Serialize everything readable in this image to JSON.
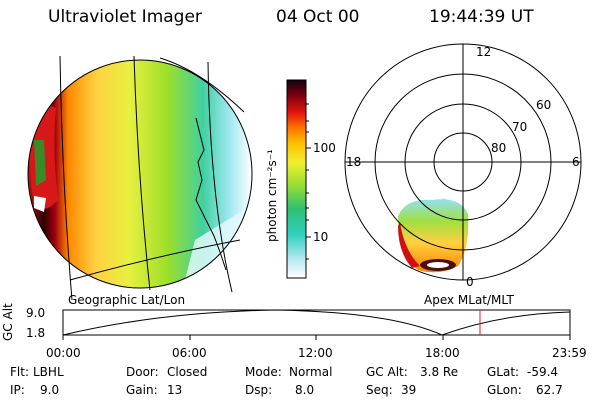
{
  "header": {
    "instrument": "Ultraviolet Imager",
    "date": "04 Oct 00",
    "time": "19:44:39 UT"
  },
  "left_panel": {
    "caption": "Geographic Lat/Lon"
  },
  "right_panel": {
    "caption": "Apex MLat/MLT",
    "mlt_labels": [
      "12",
      "18",
      "6",
      "0"
    ],
    "lat_labels": [
      "60",
      "70",
      "80"
    ]
  },
  "colorbar": {
    "label": "photon cm⁻²s⁻¹",
    "ticks": [
      "100",
      "10"
    ],
    "scale": "log"
  },
  "altitude_plot": {
    "ylabel": "GC Alt",
    "yticks": [
      "9.0",
      "1.8"
    ],
    "xticks": [
      "00:00",
      "06:00",
      "12:00",
      "18:00",
      "23:59"
    ],
    "current_time_marker_hours": 19.74,
    "marker_color": "#e02020"
  },
  "status": {
    "filter_label": "Flt:",
    "filter_value": "LBHL",
    "ip_label": "IP:",
    "ip_value": "9.0",
    "door_label": "Door:",
    "door_value": "Closed",
    "gain_label": "Gain:",
    "gain_value": "13",
    "mode_label": "Mode:",
    "mode_value": "Normal",
    "dsp_label": "Dsp:",
    "dsp_value": "8.0",
    "gcalt_label": "GC Alt:",
    "gcalt_value": "3.8 Re",
    "seq_label": "Seq:",
    "seq_value": "39",
    "glat_label": "GLat:",
    "glat_value": "-59.4",
    "glon_label": "GLon:",
    "glon_value": "62.7"
  }
}
